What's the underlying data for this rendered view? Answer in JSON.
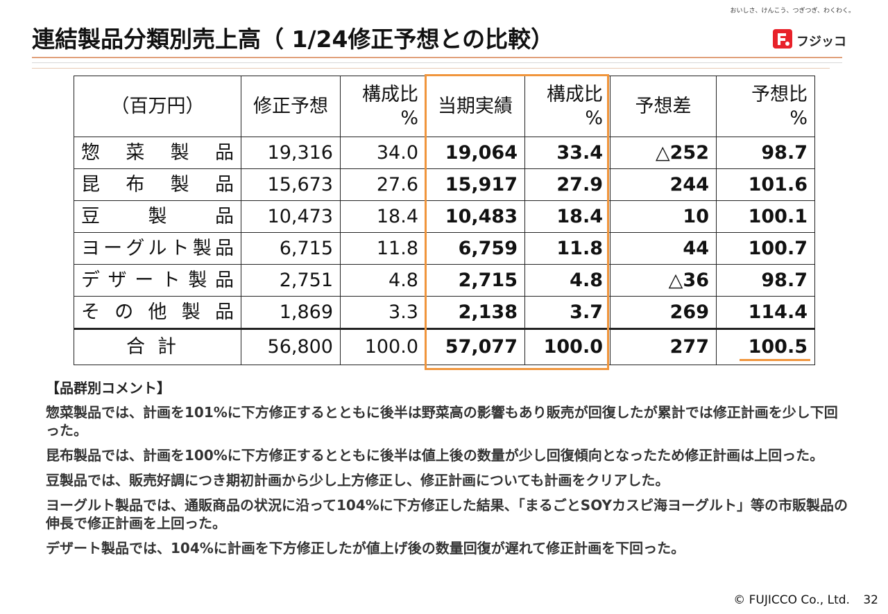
{
  "header": {
    "title": "連結製品分類別売上高（ 1/24修正予想との比較）"
  },
  "logo": {
    "tagline": "おいしさ、けんこう、つぎつぎ、わくわく。",
    "brand_name": "フジッコ",
    "accent_color": "#e8222a"
  },
  "table": {
    "headers": {
      "unit": "（百万円）",
      "revised_forecast": "修正予想",
      "ratio1_top": "構成比",
      "ratio1_bottom": "%",
      "actual": "当期実績",
      "ratio2_top": "構成比",
      "ratio2_bottom": "%",
      "diff": "予想差",
      "ratio3_top": "予想比",
      "ratio3_bottom": "%"
    },
    "rows": [
      {
        "label": "惣菜製品",
        "forecast": "19,316",
        "ratio1": "34.0",
        "actual": "19,064",
        "ratio2": "33.4",
        "diff": "△252",
        "ratio3": "98.7"
      },
      {
        "label": "昆布製品",
        "forecast": "15,673",
        "ratio1": "27.6",
        "actual": "15,917",
        "ratio2": "27.9",
        "diff": "244",
        "ratio3": "101.6"
      },
      {
        "label": "豆製品",
        "forecast": "10,473",
        "ratio1": "18.4",
        "actual": "10,483",
        "ratio2": "18.4",
        "diff": "10",
        "ratio3": "100.1"
      },
      {
        "label": "ヨーグルト製品",
        "forecast": "6,715",
        "ratio1": "11.8",
        "actual": "6,759",
        "ratio2": "11.8",
        "diff": "44",
        "ratio3": "100.7"
      },
      {
        "label": "デザート製品",
        "forecast": "2,751",
        "ratio1": "4.8",
        "actual": "2,715",
        "ratio2": "4.8",
        "diff": "△36",
        "ratio3": "98.7"
      },
      {
        "label": "その他製品",
        "forecast": "1,869",
        "ratio1": "3.3",
        "actual": "2,138",
        "ratio2": "3.7",
        "diff": "269",
        "ratio3": "114.4"
      }
    ],
    "total": {
      "label": "合計",
      "forecast": "56,800",
      "ratio1": "100.0",
      "actual": "57,077",
      "ratio2": "100.0",
      "diff": "277",
      "ratio3": "100.5"
    },
    "highlight_color": "#f0953c"
  },
  "comments": {
    "heading": "【品群別コメント】",
    "items": [
      "惣菜製品では、計画を101%に下方修正するとともに後半は野菜高の影響もあり販売が回復したが累計では修正計画を少し下回った。",
      "昆布製品では、計画を100%に下方修正するとともに後半は値上後の数量が少し回復傾向となったため修正計画は上回った。",
      "豆製品では、販売好調につき期初計画から少し上方修正し、修正計画についても計画をクリアした。",
      "ヨーグルト製品では、通販商品の状況に沿って104%に下方修正した結果、「まるごとSOYカスピ海ヨーグルト」等の市販製品の伸長で修正計画を上回った。",
      "デザート製品では、104%に計画を下方修正したが値上げ後の数量回復が遅れて修正計画を下回った。"
    ]
  },
  "footer": {
    "copyright": "© FUJICCO Co., Ltd.",
    "page_number": "32"
  }
}
